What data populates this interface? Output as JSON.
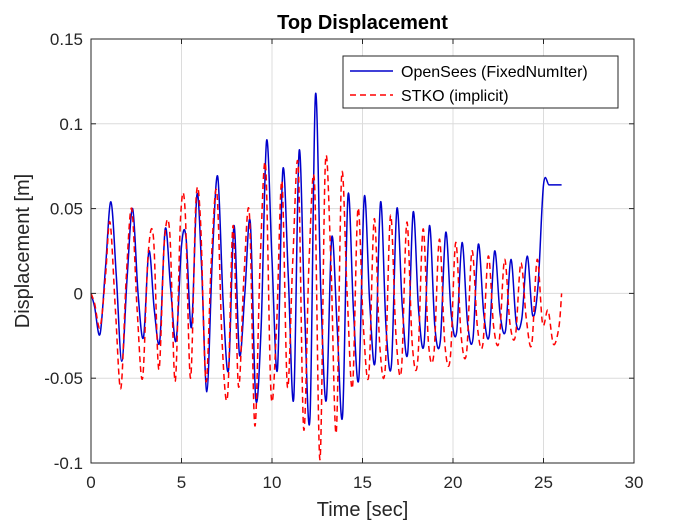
{
  "chart_data": {
    "type": "line",
    "title": "Top Displacement",
    "xlabel": "Time [sec]",
    "ylabel": "Displacement [m]",
    "xlim": [
      0,
      30
    ],
    "ylim": [
      -0.1,
      0.15
    ],
    "xticks": [
      0,
      5,
      10,
      15,
      20,
      25,
      30
    ],
    "xtick_labels": [
      "0",
      "5",
      "10",
      "15",
      "20",
      "25",
      "30"
    ],
    "yticks": [
      -0.1,
      -0.05,
      0,
      0.05,
      0.1,
      0.15
    ],
    "ytick_labels": [
      "-0.1",
      "-0.05",
      "0",
      "0.05",
      "0.1",
      "0.15"
    ],
    "grid": true,
    "legend_position": "top-right",
    "series": [
      {
        "name": "OpenSees (FixedNumIter)",
        "color": "#0000cc",
        "line_style": "solid",
        "x": [
          0,
          0.2,
          0.5,
          0.8,
          1.1,
          1.4,
          1.7,
          2.0,
          2.3,
          2.6,
          2.9,
          3.2,
          3.5,
          3.8,
          4.1,
          4.4,
          4.7,
          5.0,
          5.25,
          5.55,
          5.85,
          6.1,
          6.4,
          6.7,
          7.0,
          7.3,
          7.6,
          7.9,
          8.2,
          8.5,
          8.8,
          9.1,
          9.4,
          9.7,
          10.0,
          10.3,
          10.6,
          10.9,
          11.2,
          11.5,
          11.8,
          12.1,
          12.4,
          12.7,
          13.0,
          13.3,
          13.6,
          13.9,
          14.2,
          14.5,
          14.8,
          15.1,
          15.4,
          15.7,
          16.0,
          16.3,
          16.6,
          16.9,
          17.2,
          17.5,
          17.8,
          18.1,
          18.4,
          18.7,
          19.0,
          19.3,
          19.6,
          19.9,
          20.2,
          20.5,
          20.8,
          21.1,
          21.4,
          21.7,
          22.0,
          22.3,
          22.6,
          22.9,
          23.2,
          23.5,
          23.8,
          24.1,
          24.4,
          24.7,
          25.0,
          25.3,
          25.6,
          25.9,
          26.0
        ],
        "y": [
          0,
          -0.008,
          -0.024,
          0.015,
          0.054,
          0.01,
          -0.04,
          0.01,
          0.05,
          0.0,
          -0.026,
          0.025,
          -0.01,
          -0.028,
          0.038,
          0.003,
          -0.028,
          0.028,
          0.033,
          -0.02,
          0.058,
          0.018,
          -0.058,
          0.02,
          0.069,
          -0.005,
          -0.045,
          0.04,
          -0.036,
          0.0,
          0.042,
          -0.062,
          -0.02,
          0.09,
          0.02,
          -0.045,
          0.073,
          0.01,
          -0.062,
          0.084,
          -0.01,
          -0.073,
          0.117,
          0.0,
          -0.063,
          0.033,
          -0.02,
          -0.072,
          0.058,
          -0.01,
          -0.05,
          0.057,
          -0.006,
          -0.04,
          0.054,
          -0.02,
          -0.042,
          0.05,
          -0.008,
          -0.035,
          0.048,
          -0.01,
          -0.03,
          0.04,
          -0.02,
          -0.028,
          0.036,
          -0.012,
          -0.023,
          0.03,
          -0.017,
          -0.027,
          0.029,
          -0.012,
          -0.025,
          0.025,
          -0.012,
          -0.022,
          0.02,
          -0.018,
          -0.015,
          0.022,
          -0.013,
          0.005,
          0.064,
          0.064,
          0.064,
          0.064,
          0.064
        ]
      },
      {
        "name": "STKO (implicit)",
        "color": "#ff0000",
        "line_style": "dashed",
        "x": [
          0,
          0.2,
          0.5,
          0.8,
          1.05,
          1.35,
          1.65,
          1.95,
          2.25,
          2.55,
          2.85,
          3.15,
          3.45,
          3.75,
          4.05,
          4.35,
          4.65,
          4.95,
          5.2,
          5.5,
          5.8,
          6.05,
          6.35,
          6.65,
          6.95,
          7.25,
          7.55,
          7.85,
          8.15,
          8.45,
          8.75,
          9.05,
          9.35,
          9.65,
          9.95,
          10.25,
          10.55,
          10.85,
          11.15,
          11.45,
          11.75,
          12.05,
          12.35,
          12.65,
          12.95,
          13.25,
          13.55,
          13.85,
          14.15,
          14.45,
          14.75,
          15.05,
          15.35,
          15.65,
          15.95,
          16.25,
          16.55,
          16.85,
          17.15,
          17.45,
          17.75,
          18.05,
          18.35,
          18.65,
          18.95,
          19.25,
          19.55,
          19.85,
          20.15,
          20.45,
          20.75,
          21.05,
          21.35,
          21.65,
          21.95,
          22.25,
          22.55,
          22.85,
          23.15,
          23.45,
          23.75,
          24.05,
          24.35,
          24.65,
          24.95,
          25.25,
          25.55,
          25.85,
          26.0
        ],
        "y": [
          0,
          -0.006,
          -0.02,
          0.01,
          0.042,
          -0.01,
          -0.056,
          0.01,
          0.05,
          -0.01,
          -0.05,
          0.022,
          0.033,
          -0.045,
          0.03,
          0.036,
          -0.052,
          0.045,
          0.049,
          -0.05,
          0.055,
          0.043,
          -0.052,
          0.02,
          0.06,
          -0.03,
          -0.06,
          0.04,
          -0.055,
          0.01,
          0.047,
          -0.078,
          0.02,
          0.075,
          -0.06,
          -0.02,
          0.066,
          -0.055,
          0.02,
          0.075,
          -0.08,
          0.02,
          0.065,
          -0.098,
          0.077,
          0.02,
          -0.082,
          0.07,
          0.0,
          -0.055,
          0.05,
          -0.02,
          -0.048,
          0.044,
          -0.03,
          -0.045,
          0.046,
          -0.025,
          -0.045,
          0.042,
          -0.03,
          -0.04,
          0.038,
          -0.03,
          -0.035,
          0.032,
          -0.03,
          -0.038,
          0.03,
          -0.025,
          -0.035,
          0.025,
          -0.02,
          -0.03,
          0.022,
          -0.02,
          -0.028,
          0.02,
          -0.018,
          -0.025,
          0.018,
          -0.015,
          -0.03,
          0.02,
          -0.018,
          -0.01,
          -0.03,
          -0.02,
          0.0
        ]
      }
    ]
  }
}
